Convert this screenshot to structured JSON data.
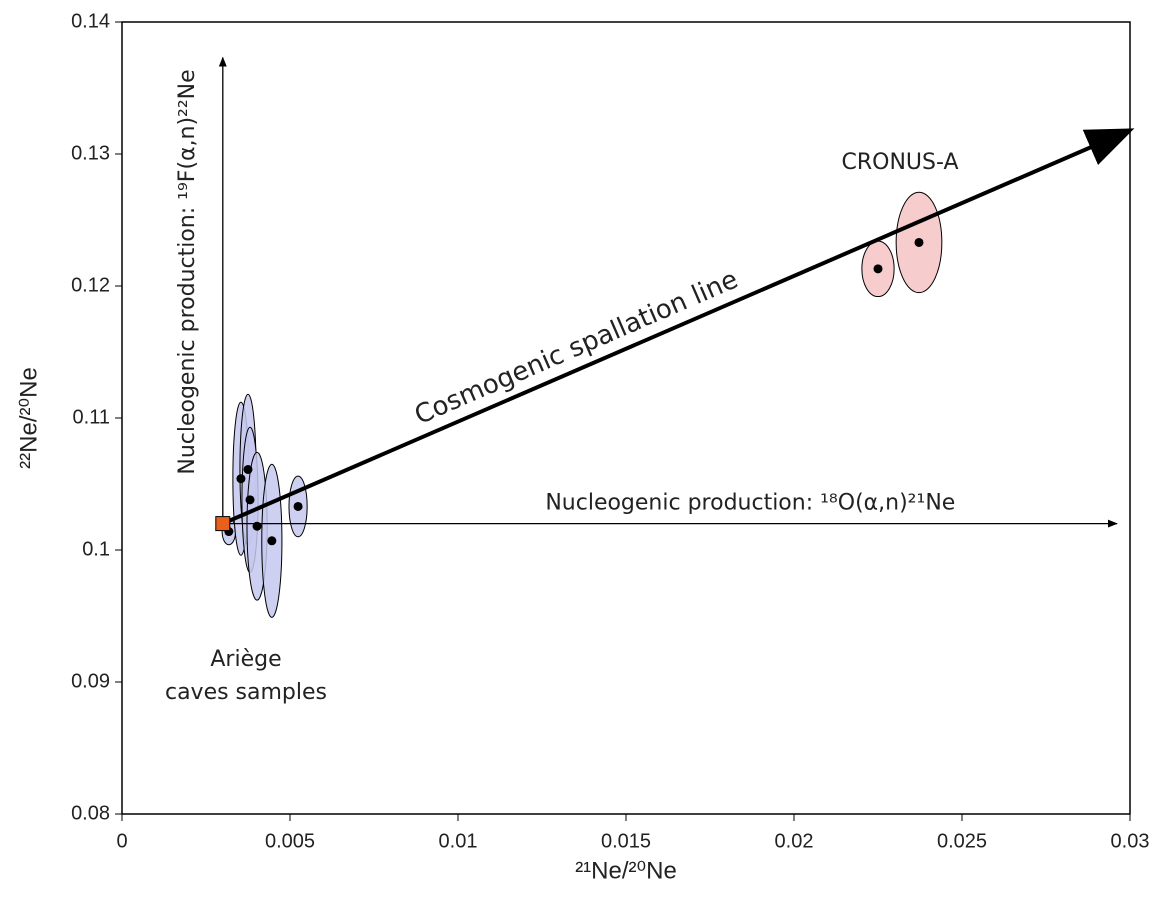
{
  "chart_data": {
    "type": "scatter",
    "xlabel": "²¹Ne/²⁰Ne",
    "ylabel": "²²Ne/²⁰Ne",
    "xlim": [
      0,
      0.03
    ],
    "ylim": [
      0.08,
      0.14
    ],
    "xticks": [
      0,
      0.005,
      0.01,
      0.015,
      0.02,
      0.025,
      0.03
    ],
    "yticks": [
      0.08,
      0.09,
      0.1,
      0.11,
      0.12,
      0.13,
      0.14
    ],
    "series": [
      {
        "label": [
          "Ariège",
          "caves samples"
        ],
        "color": "#c5c8ef",
        "x": [
          0.00318,
          0.00354,
          0.00375,
          0.00381,
          0.00402,
          0.00446,
          0.00524
        ],
        "values": [
          0.1014,
          0.1054,
          0.1061,
          0.1038,
          0.1018,
          0.1007,
          0.1033
        ],
        "x_err": [
          0.0002,
          0.00024,
          0.00024,
          0.00024,
          0.0003,
          0.0003,
          0.00027
        ],
        "y_err": [
          0.001,
          0.0058,
          0.0057,
          0.0055,
          0.0056,
          0.0058,
          0.0023
        ]
      },
      {
        "label": [
          "CRONUS-A"
        ],
        "color": "#f6c3c3",
        "x": [
          0.0225,
          0.02372
        ],
        "values": [
          0.1213,
          0.1233
        ],
        "x_err": [
          0.00048,
          0.00068
        ],
        "y_err": [
          0.0021,
          0.0038
        ]
      }
    ],
    "source_point": {
      "x": 0.003,
      "y": 0.102,
      "color": "#e8601c"
    },
    "lines": [
      {
        "label": "Cosmogenic spallation line",
        "x": [
          0.003,
          0.03
        ],
        "y": [
          0.102,
          0.1318
        ]
      },
      {
        "label": "Nucleogenic production: ¹⁸O(α,n)²¹Ne",
        "x": [
          0.003,
          0.02961
        ],
        "y": [
          0.102,
          0.102
        ]
      },
      {
        "label": "Nucleogenic production: ¹⁹F(α,n)²²Ne",
        "x": [
          0.003,
          0.003
        ],
        "y": [
          0.102,
          0.1373
        ]
      }
    ]
  }
}
